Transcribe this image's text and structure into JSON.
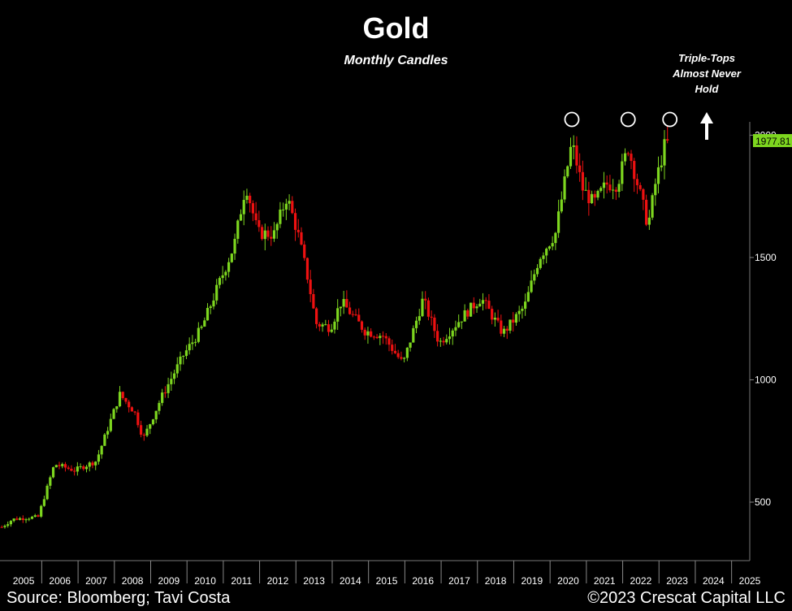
{
  "chart_data": {
    "type": "candlestick",
    "title": "Gold",
    "subtitle": "Monthly Candles",
    "annotation": [
      "Triple-Tops",
      "Almost Never",
      "Hold"
    ],
    "last_price_label": "1977.81",
    "x_tick_labels": [
      "2005",
      "2006",
      "2007",
      "2008",
      "2009",
      "2010",
      "2011",
      "2012",
      "2013",
      "2014",
      "2015",
      "2016",
      "2017",
      "2018",
      "2019",
      "2020",
      "2021",
      "2022",
      "2023",
      "2024",
      "2025"
    ],
    "y_tick_labels": [
      "500",
      "1000",
      "1500",
      "2000"
    ],
    "y_ticks": [
      500,
      1000,
      1500,
      2000
    ],
    "ylim": [
      300,
      2050
    ],
    "xlim": [
      2004.85,
      2025.5
    ],
    "anchors": [
      [
        2004.9,
        398
      ],
      [
        2005.2,
        430
      ],
      [
        2005.9,
        440
      ],
      [
        2006.35,
        655
      ],
      [
        2006.9,
        630
      ],
      [
        2007.5,
        668
      ],
      [
        2008.15,
        940
      ],
      [
        2008.55,
        870
      ],
      [
        2008.8,
        760
      ],
      [
        2009.3,
        930
      ],
      [
        2009.9,
        1100
      ],
      [
        2010.4,
        1210
      ],
      [
        2010.9,
        1400
      ],
      [
        2011.3,
        1550
      ],
      [
        2011.62,
        1800
      ],
      [
        2011.95,
        1600
      ],
      [
        2012.4,
        1595
      ],
      [
        2012.75,
        1750
      ],
      [
        2013.05,
        1600
      ],
      [
        2013.35,
        1400
      ],
      [
        2013.55,
        1230
      ],
      [
        2013.95,
        1215
      ],
      [
        2014.25,
        1320
      ],
      [
        2014.9,
        1200
      ],
      [
        2015.4,
        1180
      ],
      [
        2015.95,
        1065
      ],
      [
        2016.5,
        1330
      ],
      [
        2016.95,
        1150
      ],
      [
        2017.6,
        1260
      ],
      [
        2018.1,
        1335
      ],
      [
        2018.7,
        1190
      ],
      [
        2019.3,
        1300
      ],
      [
        2019.7,
        1500
      ],
      [
        2020.15,
        1600
      ],
      [
        2020.6,
        1970
      ],
      [
        2020.9,
        1780
      ],
      [
        2021.2,
        1720
      ],
      [
        2021.55,
        1800
      ],
      [
        2021.85,
        1800
      ],
      [
        2022.15,
        1950
      ],
      [
        2022.7,
        1630
      ],
      [
        2022.9,
        1800
      ],
      [
        2023.2,
        1985
      ],
      [
        2023.3,
        1977.81
      ]
    ],
    "rise_color": "#7dd61f",
    "fall_color": "#ee1111",
    "label_bg": "#7dd61f"
  },
  "footer": {
    "source": "Source: Bloomberg; Tavi Costa",
    "copyright": "©2023 Crescat Capital LLC"
  }
}
